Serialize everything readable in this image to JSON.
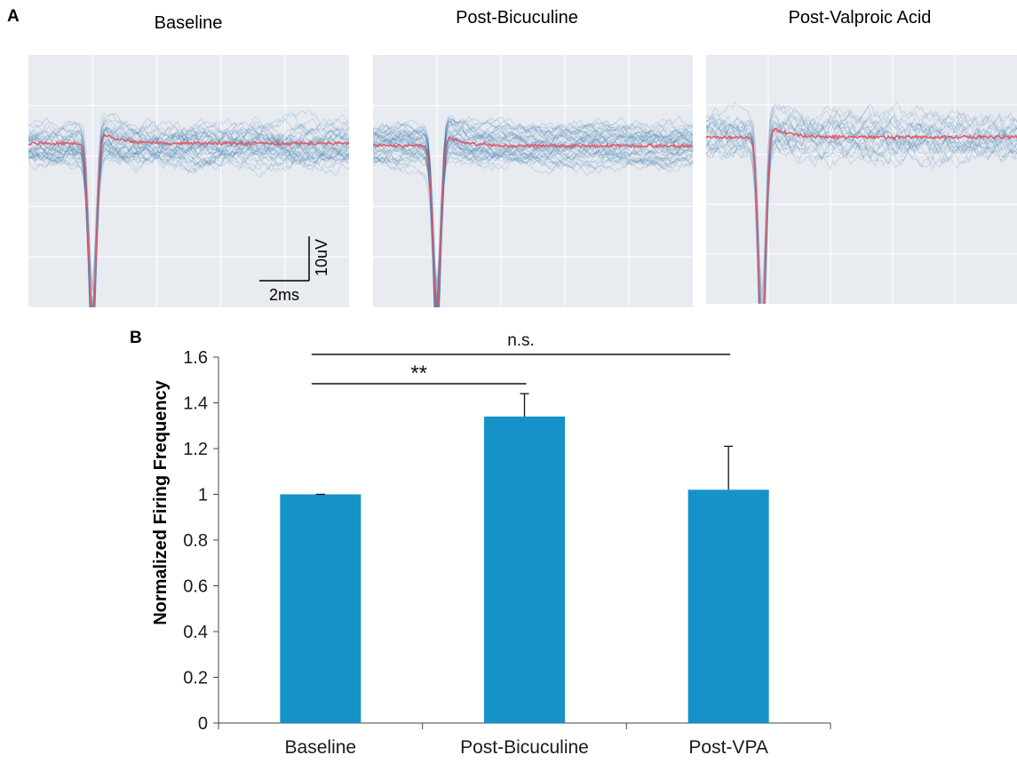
{
  "panel_a": {
    "label": "A",
    "panels": [
      {
        "title": "Baseline"
      },
      {
        "title": "Post-Bicuculine"
      },
      {
        "title": "Post-Valproic Acid"
      }
    ],
    "scale_bar": {
      "x_label": "2ms",
      "y_label": "10uV"
    },
    "colors": {
      "trace": "#2e6fa8",
      "mean": "#e05a6a",
      "bg": "#e8ebf0",
      "grid": "#ffffff"
    }
  },
  "panel_b": {
    "label": "B"
  },
  "chart_data": {
    "type": "bar",
    "categories": [
      "Baseline",
      "Post-Bicuculine",
      "Post-VPA"
    ],
    "values": [
      1.0,
      1.34,
      1.02
    ],
    "error_bars": [
      0.0,
      0.1,
      0.19
    ],
    "ylabel": "Normalized Firing Frequency",
    "xlabel": "",
    "ylim": [
      0,
      1.6
    ],
    "yticks": [
      "0",
      "0.2",
      "0.4",
      "0.6",
      "0.8",
      "1",
      "1.2",
      "1.4",
      "1.6"
    ],
    "bar_color": "#1593c8",
    "grid": false,
    "significance": [
      {
        "from": "Baseline",
        "to": "Post-Bicuculine",
        "label": "**"
      },
      {
        "from": "Baseline",
        "to": "Post-VPA",
        "label": "n.s."
      }
    ]
  }
}
